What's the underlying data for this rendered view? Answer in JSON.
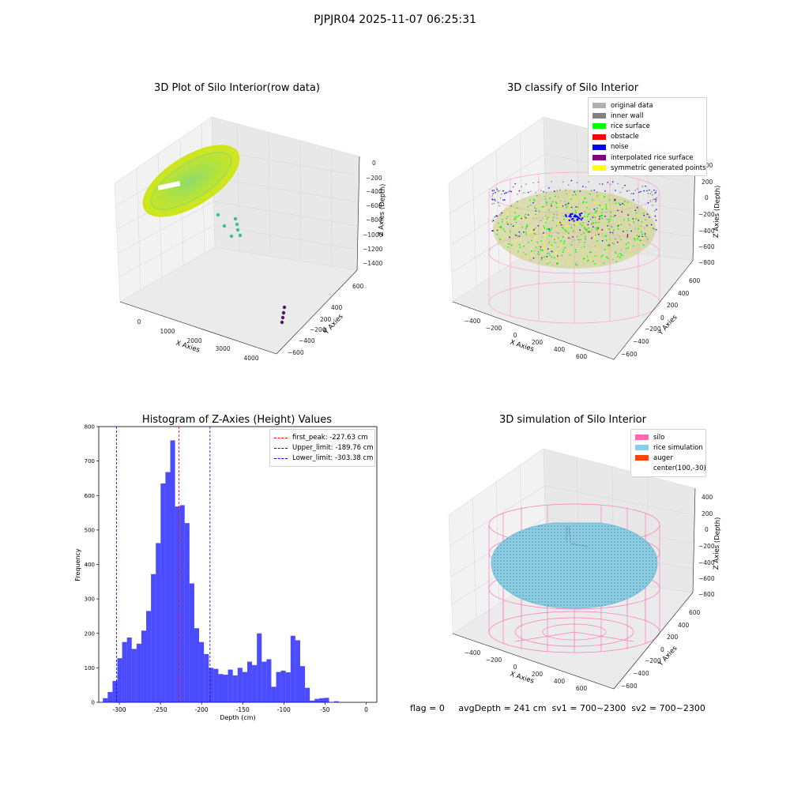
{
  "figure": {
    "suptitle": "PJPJR04 2025-11-07 06:25:31",
    "footer": "flag = 0     avgDepth = 241 cm  sv1 = 700~2300  sv2 = 700~2300"
  },
  "panel_raw": {
    "title": "3D Plot of Silo Interior(row data)",
    "x_label": "X Axies",
    "y_label": "Y Axies",
    "z_label": "Z Axies (Depth)",
    "x_ticks": [
      "0",
      "1000",
      "2000",
      "3000",
      "4000"
    ],
    "y_ticks": [
      "600",
      "400",
      "200",
      "0",
      "−200",
      "−400",
      "−600"
    ],
    "z_ticks": [
      "0",
      "−200",
      "−400",
      "−600",
      "−800",
      "−1000",
      "−1200",
      "−1400"
    ]
  },
  "panel_classify": {
    "title": "3D classify of Silo Interior",
    "x_label": "X Axies",
    "y_label": "Y Axies",
    "z_label": "Z Axies (Depth)",
    "x_ticks": [
      "−400",
      "−200",
      "0",
      "200",
      "400",
      "600"
    ],
    "y_ticks": [
      "600",
      "400",
      "200",
      "0",
      "−200",
      "−400",
      "−600"
    ],
    "z_ticks": [
      "400",
      "200",
      "0",
      "−200",
      "−400",
      "−600",
      "−800"
    ],
    "legend": [
      {
        "label": "original data",
        "color": "#b0b0b0"
      },
      {
        "label": "inner wall",
        "color": "#808080"
      },
      {
        "label": "rice surface",
        "color": "#00ff00"
      },
      {
        "label": "obstacle",
        "color": "#ff0000"
      },
      {
        "label": "noise",
        "color": "#0000ff"
      },
      {
        "label": "interpolated rice surface",
        "color": "#800080"
      },
      {
        "label": "symmetric generated points",
        "color": "#ffff00"
      }
    ]
  },
  "panel_sim": {
    "title": "3D simulation of Silo Interior",
    "x_label": "X Axies",
    "y_label": "Y Axies",
    "z_label": "Z Axies (Depth)",
    "x_ticks": [
      "−400",
      "−200",
      "0",
      "200",
      "400",
      "600"
    ],
    "y_ticks": [
      "600",
      "400",
      "200",
      "0",
      "−200",
      "−400",
      "−600"
    ],
    "z_ticks": [
      "400",
      "200",
      "0",
      "−200",
      "−400",
      "−600",
      "−800"
    ],
    "legend": [
      {
        "label": "silo",
        "color": "#ff69b4"
      },
      {
        "label": "rice simulation",
        "color": "#87ceeb"
      },
      {
        "label": "auger",
        "color": "#ff4500"
      },
      {
        "label": "center(100,-30)",
        "color": ""
      }
    ]
  },
  "chart_data": {
    "type": "bar",
    "title": "Histogram of Z-Axies (Height) Values",
    "xlabel": "Depth (cm)",
    "ylabel": "Frequency",
    "xlim": [
      -325,
      13
    ],
    "ylim": [
      0,
      800
    ],
    "x_ticks": [
      -300,
      -250,
      -200,
      -150,
      -100,
      -50,
      0
    ],
    "y_ticks": [
      0,
      100,
      200,
      300,
      400,
      500,
      600,
      700,
      800
    ],
    "bar_color": "#0000ff",
    "bin_edges_start": -320,
    "bin_width": 5.85,
    "values": [
      12,
      30,
      62,
      128,
      175,
      188,
      155,
      170,
      208,
      265,
      372,
      462,
      635,
      668,
      760,
      568,
      572,
      520,
      345,
      215,
      175,
      140,
      100,
      97,
      82,
      80,
      95,
      78,
      100,
      88,
      118,
      108,
      200,
      118,
      125,
      45,
      88,
      92,
      87,
      193,
      180,
      105,
      42,
      5,
      10,
      12,
      13,
      0,
      3
    ],
    "vlines": [
      {
        "label": "first_peak: -227.63 cm",
        "x": -227.63,
        "color": "#ff0000"
      },
      {
        "label": "Upper_limit: -189.76 cm",
        "x": -189.76,
        "color": "#0000ff"
      },
      {
        "label": "Lower_limit: -303.38 cm",
        "x": -303.38,
        "color": "#0000ff"
      }
    ]
  }
}
